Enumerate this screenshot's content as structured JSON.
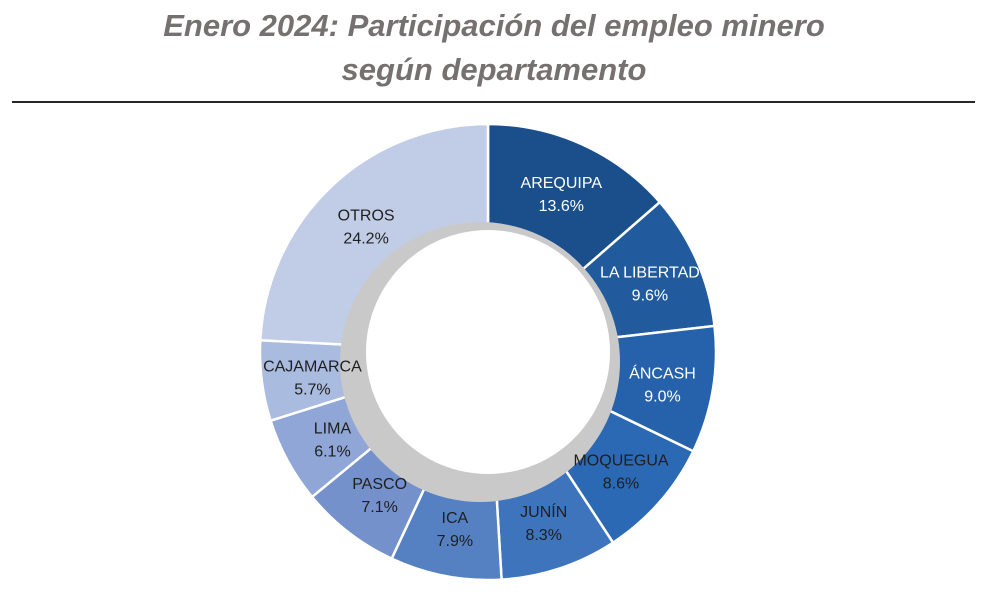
{
  "title_lines": [
    "Enero 2024: Participación del empleo minero",
    "según departamento"
  ],
  "chart_data": {
    "type": "pie",
    "title": "Enero 2024: Participación del empleo minero según departamento",
    "unit": "%",
    "legend": "none",
    "categories": [
      "AREQUIPA",
      "LA LIBERTAD",
      "ÁNCASH",
      "MOQUEGUA",
      "JUNÍN",
      "ICA",
      "PASCO",
      "LIMA",
      "CAJAMARCA",
      "OTROS"
    ],
    "values": [
      13.6,
      9.6,
      9.0,
      8.6,
      8.3,
      7.9,
      7.1,
      6.1,
      5.7,
      24.2
    ],
    "value_labels": [
      "13.6%",
      "9.6%",
      "9.0%",
      "8.6%",
      "8.3%",
      "7.9%",
      "7.1%",
      "6.1%",
      "5.7%",
      "24.2%"
    ],
    "colors": [
      "#1b4f8c",
      "#215a9d",
      "#2662ab",
      "#2c69b4",
      "#3e74bc",
      "#5580c2",
      "#7491cb",
      "#8fa6d6",
      "#aabbe0",
      "#c1cde6"
    ],
    "label_colors": [
      "#ffffff",
      "#ffffff",
      "#ffffff",
      "#1f1f1f",
      "#1f1f1f",
      "#1f1f1f",
      "#1f1f1f",
      "#1f1f1f",
      "#1f1f1f",
      "#1f1f1f"
    ]
  }
}
